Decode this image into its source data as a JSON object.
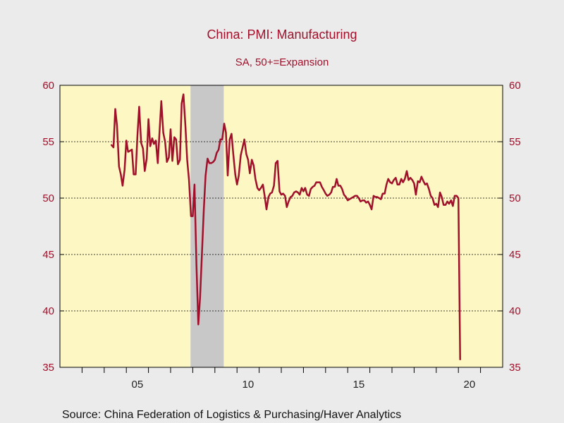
{
  "chart_data": {
    "type": "line",
    "title": "China: PMI: Manufacturing",
    "subtitle": "SA, 50+=Expansion",
    "source": "Source:  China Federation of Logistics & Purchasing/Haver Analytics",
    "x_range": [
      2002.0,
      2022.0
    ],
    "ylim": [
      35,
      60
    ],
    "y_ticks": [
      35,
      40,
      45,
      50,
      55,
      60
    ],
    "y_gridlines": [
      40,
      45,
      50,
      55
    ],
    "x_ticks": [
      {
        "value": 2005,
        "label": "05"
      },
      {
        "value": 2010,
        "label": "10"
      },
      {
        "value": 2015,
        "label": "15"
      },
      {
        "value": 2020,
        "label": "20"
      }
    ],
    "recession_shade": [
      2007.9,
      2009.4
    ],
    "colors": {
      "line": "#a0102a",
      "plot_background": "#fdf7c3",
      "recession": "#c8c8c8",
      "axis_text": "#a0102a",
      "frame": "#000000"
    },
    "grid": "y-dotted",
    "series": [
      {
        "points": [
          [
            2004.33,
            54.7
          ],
          [
            2004.42,
            54.5
          ],
          [
            2004.5,
            57.9
          ],
          [
            2004.58,
            56.4
          ],
          [
            2004.67,
            52.8
          ],
          [
            2004.75,
            52.1
          ],
          [
            2004.83,
            51.1
          ],
          [
            2004.92,
            52.5
          ],
          [
            2005.0,
            55.1
          ],
          [
            2005.08,
            54.1
          ],
          [
            2005.17,
            54.2
          ],
          [
            2005.25,
            54.3
          ],
          [
            2005.33,
            52.1
          ],
          [
            2005.42,
            52.1
          ],
          [
            2005.5,
            55.5
          ],
          [
            2005.58,
            58.1
          ],
          [
            2005.67,
            54.9
          ],
          [
            2005.75,
            54.4
          ],
          [
            2005.83,
            52.4
          ],
          [
            2005.92,
            53.5
          ],
          [
            2006.0,
            57.0
          ],
          [
            2006.08,
            54.6
          ],
          [
            2006.17,
            55.3
          ],
          [
            2006.25,
            54.8
          ],
          [
            2006.33,
            55.1
          ],
          [
            2006.42,
            53.1
          ],
          [
            2006.5,
            55.9
          ],
          [
            2006.58,
            58.6
          ],
          [
            2006.67,
            55.8
          ],
          [
            2006.75,
            55.0
          ],
          [
            2006.83,
            53.2
          ],
          [
            2006.92,
            53.6
          ],
          [
            2007.0,
            56.1
          ],
          [
            2007.08,
            53.3
          ],
          [
            2007.17,
            55.4
          ],
          [
            2007.25,
            55.2
          ],
          [
            2007.33,
            53.0
          ],
          [
            2007.42,
            53.4
          ],
          [
            2007.5,
            58.4
          ],
          [
            2007.58,
            59.2
          ],
          [
            2007.67,
            56.4
          ],
          [
            2007.75,
            53.4
          ],
          [
            2007.83,
            51.6
          ],
          [
            2007.92,
            48.4
          ],
          [
            2008.0,
            48.4
          ],
          [
            2008.08,
            51.2
          ],
          [
            2008.17,
            44.0
          ],
          [
            2008.25,
            38.8
          ],
          [
            2008.33,
            41.2
          ],
          [
            2008.42,
            45.3
          ],
          [
            2008.5,
            49.0
          ],
          [
            2008.58,
            52.0
          ],
          [
            2008.67,
            53.5
          ],
          [
            2008.75,
            53.1
          ],
          [
            2008.83,
            53.1
          ],
          [
            2008.92,
            53.2
          ],
          [
            2009.0,
            53.4
          ],
          [
            2009.08,
            54.0
          ],
          [
            2009.17,
            54.3
          ],
          [
            2009.25,
            55.2
          ],
          [
            2009.33,
            55.2
          ],
          [
            2009.42,
            56.6
          ],
          [
            2009.5,
            55.8
          ],
          [
            2009.58,
            52.0
          ],
          [
            2009.67,
            55.2
          ],
          [
            2009.75,
            55.7
          ],
          [
            2009.83,
            53.9
          ],
          [
            2009.92,
            52.1
          ],
          [
            2010.0,
            51.2
          ],
          [
            2010.08,
            52.0
          ],
          [
            2010.17,
            53.8
          ],
          [
            2010.25,
            54.5
          ],
          [
            2010.33,
            55.2
          ],
          [
            2010.42,
            53.9
          ],
          [
            2010.5,
            53.4
          ],
          [
            2010.58,
            52.2
          ],
          [
            2010.67,
            53.4
          ],
          [
            2010.75,
            52.9
          ],
          [
            2010.83,
            51.7
          ],
          [
            2010.92,
            50.9
          ],
          [
            2011.0,
            50.7
          ],
          [
            2011.08,
            50.9
          ],
          [
            2011.17,
            51.2
          ],
          [
            2011.25,
            50.2
          ],
          [
            2011.33,
            49.0
          ],
          [
            2011.42,
            50.1
          ],
          [
            2011.5,
            50.4
          ],
          [
            2011.58,
            50.5
          ],
          [
            2011.67,
            51.1
          ],
          [
            2011.75,
            53.1
          ],
          [
            2011.83,
            53.3
          ],
          [
            2011.92,
            50.6
          ],
          [
            2012.0,
            50.3
          ],
          [
            2012.08,
            50.4
          ],
          [
            2012.17,
            50.2
          ],
          [
            2012.25,
            49.2
          ],
          [
            2012.33,
            49.7
          ],
          [
            2012.42,
            50.1
          ],
          [
            2012.5,
            50.2
          ],
          [
            2012.58,
            50.5
          ],
          [
            2012.67,
            50.6
          ],
          [
            2012.75,
            50.5
          ],
          [
            2012.83,
            50.3
          ],
          [
            2012.92,
            50.9
          ],
          [
            2013.0,
            50.6
          ],
          [
            2013.08,
            50.9
          ],
          [
            2013.17,
            50.3
          ],
          [
            2013.25,
            50.2
          ],
          [
            2013.33,
            50.8
          ],
          [
            2013.42,
            51.0
          ],
          [
            2013.5,
            51.1
          ],
          [
            2013.58,
            51.4
          ],
          [
            2013.67,
            51.4
          ],
          [
            2013.75,
            51.4
          ],
          [
            2013.83,
            51.0
          ],
          [
            2013.92,
            50.7
          ],
          [
            2014.0,
            50.4
          ],
          [
            2014.08,
            50.2
          ],
          [
            2014.17,
            50.3
          ],
          [
            2014.25,
            50.5
          ],
          [
            2014.33,
            51.0
          ],
          [
            2014.42,
            51.0
          ],
          [
            2014.5,
            51.7
          ],
          [
            2014.58,
            51.1
          ],
          [
            2014.67,
            51.1
          ],
          [
            2014.75,
            50.8
          ],
          [
            2014.83,
            50.3
          ],
          [
            2014.92,
            50.1
          ],
          [
            2015.0,
            49.8
          ],
          [
            2015.08,
            49.9
          ],
          [
            2015.17,
            50.0
          ],
          [
            2015.25,
            50.1
          ],
          [
            2015.33,
            50.2
          ],
          [
            2015.42,
            50.2
          ],
          [
            2015.5,
            50.0
          ],
          [
            2015.58,
            49.7
          ],
          [
            2015.67,
            49.8
          ],
          [
            2015.75,
            49.8
          ],
          [
            2015.83,
            49.6
          ],
          [
            2015.92,
            49.7
          ],
          [
            2016.0,
            49.4
          ],
          [
            2016.08,
            49.0
          ],
          [
            2016.17,
            50.2
          ],
          [
            2016.25,
            50.1
          ],
          [
            2016.33,
            50.1
          ],
          [
            2016.42,
            50.0
          ],
          [
            2016.5,
            49.9
          ],
          [
            2016.58,
            50.4
          ],
          [
            2016.67,
            50.4
          ],
          [
            2016.75,
            51.2
          ],
          [
            2016.83,
            51.7
          ],
          [
            2016.92,
            51.4
          ],
          [
            2017.0,
            51.3
          ],
          [
            2017.08,
            51.6
          ],
          [
            2017.17,
            51.8
          ],
          [
            2017.25,
            51.2
          ],
          [
            2017.33,
            51.2
          ],
          [
            2017.42,
            51.7
          ],
          [
            2017.5,
            51.4
          ],
          [
            2017.58,
            51.7
          ],
          [
            2017.67,
            52.4
          ],
          [
            2017.75,
            51.6
          ],
          [
            2017.83,
            51.8
          ],
          [
            2017.92,
            51.6
          ],
          [
            2018.0,
            51.3
          ],
          [
            2018.08,
            50.3
          ],
          [
            2018.17,
            51.5
          ],
          [
            2018.25,
            51.4
          ],
          [
            2018.33,
            51.9
          ],
          [
            2018.42,
            51.5
          ],
          [
            2018.5,
            51.2
          ],
          [
            2018.58,
            51.3
          ],
          [
            2018.67,
            50.8
          ],
          [
            2018.75,
            50.2
          ],
          [
            2018.83,
            50.0
          ],
          [
            2018.92,
            49.4
          ],
          [
            2019.0,
            49.5
          ],
          [
            2019.08,
            49.2
          ],
          [
            2019.17,
            50.5
          ],
          [
            2019.25,
            50.1
          ],
          [
            2019.33,
            49.4
          ],
          [
            2019.42,
            49.4
          ],
          [
            2019.5,
            49.7
          ],
          [
            2019.58,
            49.5
          ],
          [
            2019.67,
            49.8
          ],
          [
            2019.75,
            49.3
          ],
          [
            2019.83,
            50.2
          ],
          [
            2019.92,
            50.2
          ],
          [
            2020.0,
            50.0
          ],
          [
            2020.08,
            35.7
          ]
        ]
      }
    ]
  }
}
